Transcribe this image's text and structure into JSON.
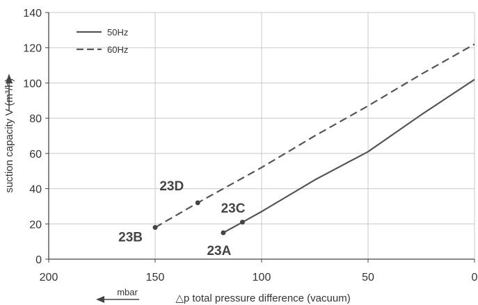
{
  "chart_data": {
    "type": "line",
    "title": "",
    "xlabel": "△p total pressure difference (vacuum)",
    "ylabel": "suction capacity V (m³/h)",
    "x_unit_label": "mbar",
    "xlim": [
      200,
      0
    ],
    "ylim": [
      0,
      140
    ],
    "x_ticks": [
      200,
      150,
      100,
      50,
      0
    ],
    "y_ticks": [
      0,
      20,
      40,
      60,
      80,
      100,
      120,
      140
    ],
    "x_reversed": true,
    "grid": true,
    "legend": "top-left",
    "series": [
      {
        "name": "50Hz",
        "style": "solid",
        "color": "#555555",
        "points": [
          [
            118,
            15
          ],
          [
            109,
            21
          ],
          [
            100,
            27
          ],
          [
            75,
            45
          ],
          [
            50,
            61
          ],
          [
            25,
            82
          ],
          [
            0,
            102
          ]
        ]
      },
      {
        "name": "60Hz",
        "style": "dashed",
        "color": "#555555",
        "points": [
          [
            150,
            18
          ],
          [
            130,
            32
          ],
          [
            100,
            52
          ],
          [
            75,
            70
          ],
          [
            50,
            87
          ],
          [
            25,
            105
          ],
          [
            0,
            122
          ]
        ]
      }
    ],
    "markers": [
      {
        "label": "23B",
        "x": 150,
        "y": 18,
        "series": "60Hz"
      },
      {
        "label": "23D",
        "x": 130,
        "y": 32,
        "series": "60Hz"
      },
      {
        "label": "23C",
        "x": 109,
        "y": 21,
        "series": "50Hz"
      },
      {
        "label": "23A",
        "x": 118,
        "y": 15,
        "series": "50Hz"
      }
    ],
    "colors": {
      "axis": "#444444",
      "grid": "#c8c8c8",
      "text": "#333333"
    }
  }
}
